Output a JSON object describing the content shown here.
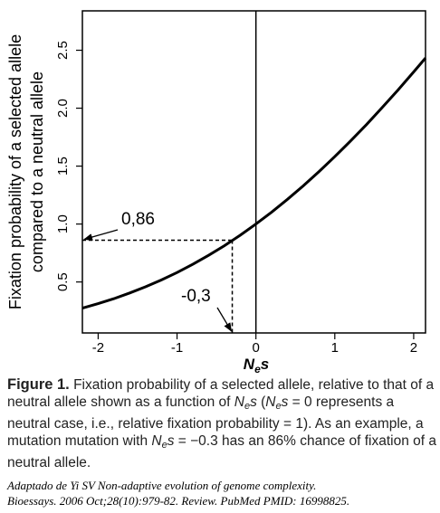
{
  "chart_data": {
    "type": "line",
    "xlabel": [
      "N",
      "e",
      "s"
    ],
    "ylabel": [
      "Fixation probability of a selected allele",
      "compared to a neutral allele"
    ],
    "x": [
      -2.2,
      -2.0,
      -1.8,
      -1.6,
      -1.4,
      -1.2,
      -1.0,
      -0.8,
      -0.6,
      -0.4,
      -0.2,
      0,
      0.2,
      0.4,
      0.6,
      0.8,
      1.0,
      1.2,
      1.4,
      1.6,
      1.8,
      2.0,
      2.15
    ],
    "values": [
      0.274,
      0.313,
      0.356,
      0.405,
      0.458,
      0.517,
      0.582,
      0.653,
      0.73,
      0.813,
      0.903,
      1.0,
      1.103,
      1.213,
      1.33,
      1.453,
      1.582,
      1.717,
      1.858,
      2.005,
      2.156,
      2.313,
      2.433
    ],
    "color": "#000000",
    "xlim": [
      -2.2,
      2.15
    ],
    "ylim": [
      0.06,
      2.84
    ],
    "xticks": [
      -2,
      -1,
      0,
      1,
      2
    ],
    "yticks": [
      0.5,
      {
        "value": 1,
        "label": "1.0"
      },
      1.5,
      {
        "value": 2,
        "label": "2.0"
      },
      2.5
    ],
    "vline": 0,
    "marker": {
      "x": -0.3,
      "y": 0.86,
      "x_label": "-0,3",
      "y_label": "0,86"
    }
  },
  "caption": [
    {
      "text": "Figure 1.",
      "style": "b"
    },
    {
      "text": " Fixation probability of a selected allele, relative to that of a neutral allele shown as a function of ",
      "style": ""
    },
    {
      "text": "N",
      "style": "i"
    },
    {
      "text": "e",
      "style": "sub"
    },
    {
      "text": "s",
      "style": "i"
    },
    {
      "text": " (",
      "style": ""
    },
    {
      "text": "N",
      "style": "i"
    },
    {
      "text": "e",
      "style": "sub"
    },
    {
      "text": "s",
      "style": "i"
    },
    {
      "text": " = 0 represents a neutral case, i.e., relative fixation probability = 1). As an example, a mutation mutation with ",
      "style": ""
    },
    {
      "text": "N",
      "style": "i"
    },
    {
      "text": "e",
      "style": "sub"
    },
    {
      "text": "s",
      "style": "i"
    },
    {
      "text": " = −0.3 has an 86% chance of fixation of a neutral allele.",
      "style": ""
    }
  ],
  "credit": [
    "Adaptado de Yi SV Non-adaptive evolution of genome complexity.",
    "Bioessays. 2006 Oct;28(10):979-82. Review. PubMed PMID: 16998825."
  ]
}
